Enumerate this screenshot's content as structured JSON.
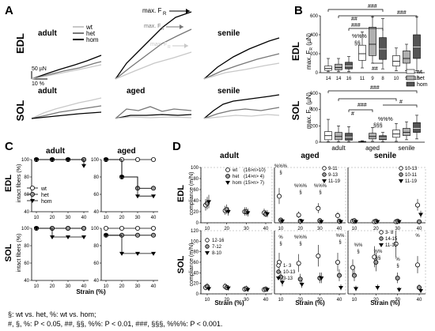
{
  "panels": {
    "A": {
      "letter": "A",
      "rows": [
        "EDL",
        "SOL"
      ],
      "cols_top": [
        "adult",
        "",
        "senile"
      ],
      "cols_bottom": [
        "adult",
        "aged",
        "senile"
      ],
      "legend": [
        "wt",
        "het",
        "hom"
      ],
      "scale_y": "50 µN",
      "scale_x": "10 %",
      "maxF_hom": "max. F",
      "maxF_het": "max. F",
      "maxF_wt": "max. F",
      "sub": "R"
    },
    "B": {
      "letter": "B",
      "ylabel": "max. F",
      "sub": "R",
      "unit": "(µN)",
      "row_top": "EDL",
      "row_bottom": "SOL",
      "groups": [
        "adult",
        "aged",
        "senile"
      ],
      "legend": [
        "wt",
        "het",
        "hom"
      ],
      "top_ticks": [
        "0",
        "200",
        "400",
        "600"
      ],
      "bottom_ticks": [
        "0",
        "200",
        "400",
        "600"
      ],
      "n_labels": [
        "14",
        "14",
        "16",
        "11",
        "9",
        "8",
        "10",
        "9",
        "15"
      ],
      "sig_top": [
        "###",
        "##",
        "###",
        "###",
        "%%%",
        "§§",
        "##"
      ],
      "sig_bottom": [
        "###",
        "###",
        "#",
        "#",
        "§§§",
        "%%%"
      ]
    },
    "C": {
      "letter": "C",
      "cols": [
        "adult",
        "aged"
      ],
      "row_top": "EDL",
      "row_bottom": "SOL",
      "ylabel": "intact fibers (%)",
      "yticks": [
        "40",
        "60",
        "80",
        "100"
      ],
      "xticks": [
        "10",
        "20",
        "30",
        "40"
      ],
      "xlabel": "Strain (%)",
      "legend": [
        "wt",
        "het",
        "hom"
      ]
    },
    "D": {
      "letter": "D",
      "cols": [
        "adult",
        "aged",
        "senile"
      ],
      "row_top": "EDL",
      "row_bottom": "SOL",
      "ylabel": "compliance (m/N)",
      "yticks_top": [
        "0",
        "20",
        "40",
        "60",
        "80",
        "100"
      ],
      "yticks_bottom": [
        "0",
        "20",
        "40",
        "60",
        "80",
        "100",
        "120"
      ],
      "xticks": [
        "10",
        "20",
        "30",
        "40"
      ],
      "xlabel": "Strain (%)",
      "legend_top": [
        "wt",
        "het",
        "hom"
      ],
      "legend_top_n": [
        "(16>n>10)",
        "(14>n> 4)",
        "(15>n> 7)"
      ],
      "aged_edl_n": [
        "9-11",
        "9-13",
        "11-19"
      ],
      "senile_edl_n": [
        "10-13",
        "10-11",
        "11-19"
      ],
      "adult_sol_n": [
        "12-16",
        "7-12",
        "8-10"
      ],
      "aged_sol_n": [
        "1- 3",
        "10-13",
        "3-13"
      ],
      "senile_sol_n": [
        "3- 8",
        "14-15",
        "11-15"
      ],
      "sig_aged_edl": [
        "%%%",
        "§",
        "%%%",
        "§",
        "%%%",
        "§"
      ],
      "sig_aged_sol": [
        "%",
        "§",
        "%%%",
        "§",
        "%%",
        "§"
      ],
      "sig_senile_sol": [
        "%%",
        "§",
        "%%",
        "§§",
        "%",
        "§",
        "%"
      ]
    }
  },
  "chart_data": [
    {
      "type": "line",
      "title": "",
      "panel": "C-adult-EDL",
      "x": [
        10,
        20,
        30,
        40
      ],
      "ylim": [
        40,
        100
      ],
      "series": [
        {
          "name": "wt",
          "values": [
            100,
            100,
            100,
            100
          ]
        },
        {
          "name": "het",
          "values": [
            100,
            100,
            100,
            100
          ]
        },
        {
          "name": "hom",
          "values": [
            100,
            100,
            100,
            93
          ]
        }
      ]
    },
    {
      "type": "line",
      "title": "",
      "panel": "C-aged-EDL",
      "x": [
        10,
        20,
        30,
        40
      ],
      "ylim": [
        40,
        100
      ],
      "series": [
        {
          "name": "wt",
          "values": [
            100,
            100,
            100,
            100
          ]
        },
        {
          "name": "het",
          "values": [
            100,
            80,
            67,
            67
          ]
        },
        {
          "name": "hom",
          "values": [
            100,
            80,
            58,
            58
          ]
        }
      ]
    },
    {
      "type": "line",
      "title": "",
      "panel": "C-adult-SOL",
      "x": [
        10,
        20,
        30,
        40
      ],
      "ylim": [
        40,
        100
      ],
      "series": [
        {
          "name": "wt",
          "values": [
            100,
            100,
            100,
            100
          ]
        },
        {
          "name": "het",
          "values": [
            100,
            100,
            100,
            100
          ]
        },
        {
          "name": "hom",
          "values": [
            100,
            90,
            90,
            90
          ]
        }
      ]
    },
    {
      "type": "line",
      "title": "",
      "panel": "C-aged-SOL",
      "x": [
        10,
        20,
        30,
        40
      ],
      "ylim": [
        40,
        100
      ],
      "series": [
        {
          "name": "wt",
          "values": [
            100,
            100,
            100,
            100
          ]
        },
        {
          "name": "het",
          "values": [
            92,
            92,
            92,
            92
          ]
        },
        {
          "name": "hom",
          "values": [
            92,
            71,
            71,
            71
          ]
        }
      ]
    },
    {
      "type": "scatter",
      "title": "",
      "panel": "D-adult-EDL",
      "x": [
        10,
        20,
        30,
        40
      ],
      "ylim": [
        0,
        100
      ],
      "series": [
        {
          "name": "wt",
          "values": [
            32,
            22,
            20,
            18
          ]
        },
        {
          "name": "het",
          "values": [
            35,
            24,
            20,
            16
          ]
        },
        {
          "name": "hom",
          "values": [
            38,
            20,
            18,
            16
          ]
        }
      ]
    },
    {
      "type": "scatter",
      "title": "",
      "panel": "D-aged-EDL",
      "x": [
        10,
        20,
        30,
        40
      ],
      "ylim": [
        0,
        100
      ],
      "series": [
        {
          "name": "wt",
          "values": [
            48,
            14,
            26,
            13
          ]
        },
        {
          "name": "het",
          "values": [
            5,
            3,
            4,
            3
          ]
        },
        {
          "name": "hom",
          "values": [
            3,
            3,
            2,
            2
          ]
        }
      ]
    },
    {
      "type": "scatter",
      "title": "",
      "panel": "D-senile-EDL",
      "x": [
        10,
        20,
        30,
        40
      ],
      "ylim": [
        0,
        100
      ],
      "series": [
        {
          "name": "wt",
          "values": [
            3,
            2,
            2,
            32
          ]
        },
        {
          "name": "het",
          "values": [
            4,
            3,
            3,
            2
          ]
        },
        {
          "name": "hom",
          "values": [
            2,
            2,
            2,
            15
          ]
        }
      ]
    },
    {
      "type": "scatter",
      "title": "",
      "panel": "D-adult-SOL",
      "x": [
        10,
        20,
        30,
        40
      ],
      "ylim": [
        0,
        120
      ],
      "series": [
        {
          "name": "wt",
          "values": [
            12,
            14,
            9,
            8
          ]
        },
        {
          "name": "het",
          "values": [
            14,
            12,
            10,
            9
          ]
        },
        {
          "name": "hom",
          "values": [
            10,
            11,
            8,
            8
          ]
        }
      ]
    },
    {
      "type": "scatter",
      "title": "",
      "panel": "D-aged-SOL",
      "x": [
        10,
        20,
        30,
        40
      ],
      "ylim": [
        0,
        120
      ],
      "series": [
        {
          "name": "wt",
          "values": [
            60,
            58,
            72,
            60
          ]
        },
        {
          "name": "het",
          "values": [
            32,
            28,
            30,
            35
          ]
        },
        {
          "name": "hom",
          "values": [
            22,
            18,
            30,
            12
          ]
        }
      ]
    },
    {
      "type": "scatter",
      "title": "",
      "panel": "D-senile-SOL",
      "x": [
        10,
        20,
        30,
        40
      ],
      "ylim": [
        0,
        120
      ],
      "series": [
        {
          "name": "wt",
          "values": [
            50,
            70,
            95,
            55
          ]
        },
        {
          "name": "het",
          "values": [
            35,
            60,
            30,
            12
          ]
        },
        {
          "name": "hom",
          "values": [
            10,
            12,
            8,
            6
          ]
        }
      ]
    },
    {
      "type": "box",
      "title": "",
      "panel": "B-EDL",
      "ylim": [
        0,
        600
      ],
      "categories": [
        "adult-wt",
        "adult-het",
        "adult-hom",
        "aged-wt",
        "aged-het",
        "aged-hom",
        "senile-wt",
        "senile-het",
        "senile-hom"
      ],
      "values": [
        {
          "min": 10,
          "q1": 25,
          "median": 45,
          "q3": 70,
          "max": 150
        },
        {
          "min": 10,
          "q1": 30,
          "median": 55,
          "q3": 90,
          "max": 150
        },
        {
          "min": 10,
          "q1": 40,
          "median": 70,
          "q3": 110,
          "max": 170
        },
        {
          "min": 50,
          "q1": 130,
          "median": 200,
          "q3": 290,
          "max": 430
        },
        {
          "min": 100,
          "q1": 180,
          "median": 300,
          "q3": 480,
          "max": 590
        },
        {
          "min": 40,
          "q1": 140,
          "median": 250,
          "q3": 370,
          "max": 570
        },
        {
          "min": 20,
          "q1": 70,
          "median": 120,
          "q3": 180,
          "max": 260
        },
        {
          "min": 20,
          "q1": 100,
          "median": 150,
          "q3": 230,
          "max": 300
        },
        {
          "min": 20,
          "q1": 150,
          "median": 270,
          "q3": 400,
          "max": 590
        }
      ]
    },
    {
      "type": "box",
      "title": "",
      "panel": "B-SOL",
      "ylim": [
        0,
        600
      ],
      "categories": [
        "adult-wt",
        "adult-het",
        "adult-hom",
        "aged-wt",
        "aged-het",
        "aged-hom",
        "senile-wt",
        "senile-het",
        "senile-hom"
      ],
      "values": [
        {
          "min": 5,
          "q1": 30,
          "median": 80,
          "q3": 130,
          "max": 280
        },
        {
          "min": 5,
          "q1": 30,
          "median": 70,
          "q3": 120,
          "max": 200
        },
        {
          "min": 5,
          "q1": 25,
          "median": 60,
          "q3": 110,
          "max": 190
        },
        {
          "min": 0,
          "q1": 2,
          "median": 5,
          "q3": 10,
          "max": 18
        },
        {
          "min": 10,
          "q1": 40,
          "median": 70,
          "q3": 110,
          "max": 180
        },
        {
          "min": 5,
          "q1": 30,
          "median": 50,
          "q3": 80,
          "max": 120
        },
        {
          "min": 10,
          "q1": 60,
          "median": 100,
          "q3": 150,
          "max": 230
        },
        {
          "min": 30,
          "q1": 80,
          "median": 120,
          "q3": 170,
          "max": 250
        },
        {
          "min": 40,
          "q1": 120,
          "median": 170,
          "q3": 240,
          "max": 330
        }
      ]
    }
  ],
  "footnote": {
    "line1": "§: wt vs. het, %: wt vs. hom;",
    "line2": "#, §, %:  P < 0.05, ##, §§, %%: P < 0.01, ###, §§§, %%%: P < 0.001."
  }
}
